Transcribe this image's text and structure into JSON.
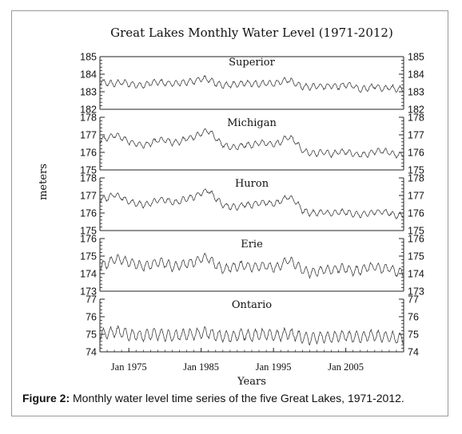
{
  "figure": {
    "caption_label": "Figure 2:",
    "caption_text": " Monthly water level time series of the five Great Lakes, 1971-2012."
  },
  "chart_data": {
    "type": "line",
    "title": "Great Lakes Monthly Water Level (1971-2012)",
    "xlabel": "Years",
    "ylabel": "meters",
    "x_range": [
      "1971-01",
      "2012-12"
    ],
    "x_ticks": [
      {
        "label": "Jan 1975",
        "date": "1975-01"
      },
      {
        "label": "Jan 1985",
        "date": "1985-01"
      },
      {
        "label": "Jan 1995",
        "date": "1995-01"
      },
      {
        "label": "Jan 2005",
        "date": "2005-01"
      }
    ],
    "panels": [
      {
        "name": "Superior",
        "ylim": [
          182,
          185
        ],
        "yticks": [
          "182",
          "183",
          "184",
          "185"
        ],
        "yearly_mean": [
          183.55,
          183.5,
          183.45,
          183.55,
          183.45,
          183.4,
          183.35,
          183.5,
          183.55,
          183.5,
          183.45,
          183.5,
          183.55,
          183.6,
          183.75,
          183.7,
          183.5,
          183.35,
          183.4,
          183.4,
          183.5,
          183.45,
          183.45,
          183.5,
          183.45,
          183.55,
          183.7,
          183.45,
          183.3,
          183.25,
          183.35,
          183.3,
          183.35,
          183.3,
          183.4,
          183.35,
          183.1,
          183.2,
          183.35,
          183.15,
          183.25,
          183.15
        ],
        "seasonal_amplitude": 0.16,
        "noise": 0.05
      },
      {
        "name": "Michigan",
        "ylim": [
          175,
          178
        ],
        "yticks": [
          "175",
          "176",
          "177",
          "178"
        ],
        "yearly_mean": [
          176.7,
          176.8,
          177.0,
          176.85,
          176.6,
          176.5,
          176.4,
          176.5,
          176.7,
          176.7,
          176.55,
          176.6,
          176.8,
          176.85,
          177.1,
          177.25,
          176.8,
          176.45,
          176.3,
          176.3,
          176.45,
          176.4,
          176.55,
          176.55,
          176.45,
          176.6,
          176.9,
          176.65,
          176.1,
          175.95,
          175.95,
          176.05,
          175.9,
          176.0,
          176.05,
          175.9,
          175.85,
          175.9,
          176.05,
          176.1,
          176.0,
          175.85
        ],
        "seasonal_amplitude": 0.15,
        "noise": 0.05
      },
      {
        "name": "Huron",
        "ylim": [
          175,
          178
        ],
        "yticks": [
          "175",
          "176",
          "177",
          "178"
        ],
        "yearly_mean": [
          176.75,
          176.85,
          177.05,
          176.9,
          176.65,
          176.55,
          176.45,
          176.55,
          176.75,
          176.75,
          176.6,
          176.65,
          176.85,
          176.9,
          177.15,
          177.3,
          176.85,
          176.45,
          176.35,
          176.35,
          176.5,
          176.45,
          176.6,
          176.6,
          176.5,
          176.65,
          176.95,
          176.7,
          176.15,
          176.0,
          176.0,
          176.05,
          175.95,
          176.05,
          176.05,
          175.95,
          175.9,
          175.95,
          176.05,
          176.1,
          176.0,
          175.85
        ],
        "seasonal_amplitude": 0.15,
        "noise": 0.05
      },
      {
        "name": "Erie",
        "ylim": [
          173,
          176
        ],
        "yticks": [
          "173",
          "174",
          "175",
          "176"
        ],
        "yearly_mean": [
          174.45,
          174.55,
          174.85,
          174.8,
          174.65,
          174.55,
          174.4,
          174.5,
          174.65,
          174.6,
          174.4,
          174.45,
          174.6,
          174.65,
          174.85,
          174.9,
          174.5,
          174.25,
          174.35,
          174.4,
          174.5,
          174.35,
          174.45,
          174.45,
          174.3,
          174.45,
          174.8,
          174.55,
          174.2,
          174.05,
          174.1,
          174.25,
          174.2,
          174.3,
          174.3,
          174.15,
          174.2,
          174.35,
          174.4,
          174.25,
          174.35,
          174.1
        ],
        "seasonal_amplitude": 0.24,
        "noise": 0.06
      },
      {
        "name": "Ontario",
        "ylim": [
          74,
          77
        ],
        "yticks": [
          "74",
          "75",
          "76",
          "77"
        ],
        "yearly_mean": [
          75.0,
          75.05,
          75.15,
          75.1,
          74.95,
          75.0,
          74.9,
          75.0,
          75.0,
          74.95,
          74.9,
          74.95,
          75.0,
          75.0,
          75.05,
          75.1,
          74.9,
          74.9,
          74.85,
          74.95,
          75.0,
          74.9,
          75.0,
          75.0,
          74.9,
          74.95,
          75.05,
          74.95,
          74.8,
          74.75,
          74.8,
          74.85,
          74.8,
          74.9,
          74.9,
          74.85,
          74.8,
          74.9,
          74.95,
          74.85,
          74.9,
          74.75
        ],
        "seasonal_amplitude": 0.3,
        "noise": 0.07
      }
    ]
  }
}
